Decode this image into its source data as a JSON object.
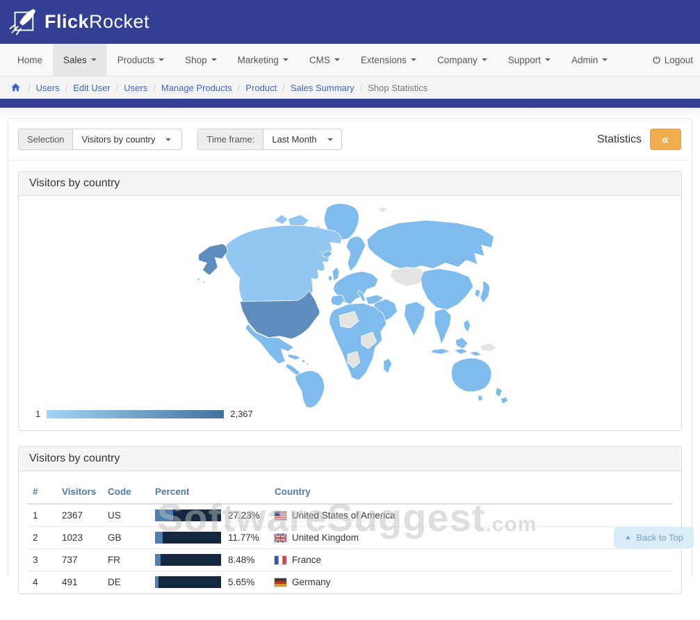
{
  "theme": {
    "header_bg": "#333f92",
    "accent_orange": "#f0ad4e",
    "link_color": "#4363c6",
    "map_default": "#7fbbec",
    "map_low": "#92c7f1",
    "map_high": "#5e8cbd",
    "map_empty": "#e3e3e3",
    "bar_bg": "#14293f",
    "bar_fill": "#4d80b0",
    "table_header_color": "#4d7ca8",
    "legend_from": "#a3d4f7",
    "legend_to": "#44719e"
  },
  "header": {
    "brand_bold": "Flick",
    "brand_regular": "Rocket"
  },
  "nav": {
    "items": [
      {
        "label": "Home",
        "has_dropdown": false,
        "active": false
      },
      {
        "label": "Sales",
        "has_dropdown": true,
        "active": true
      },
      {
        "label": "Products",
        "has_dropdown": true,
        "active": false
      },
      {
        "label": "Shop",
        "has_dropdown": true,
        "active": false
      },
      {
        "label": "Marketing",
        "has_dropdown": true,
        "active": false
      },
      {
        "label": "CMS",
        "has_dropdown": true,
        "active": false
      },
      {
        "label": "Extensions",
        "has_dropdown": true,
        "active": false
      },
      {
        "label": "Company",
        "has_dropdown": true,
        "active": false
      },
      {
        "label": "Support",
        "has_dropdown": true,
        "active": false
      },
      {
        "label": "Admin",
        "has_dropdown": true,
        "active": false
      }
    ],
    "logout_label": "Logout"
  },
  "breadcrumb": {
    "links": [
      "Users",
      "Edit User",
      "Users",
      "Manage Products",
      "Product",
      "Sales Summary"
    ],
    "current": "Shop Statistics"
  },
  "toolbar": {
    "selection_label": "Selection",
    "selection_value": "Visitors by country",
    "timeframe_label": "Time frame:",
    "timeframe_value": "Last Month",
    "statistics_label": "Statistics",
    "collapse_icon": "«"
  },
  "map_panel": {
    "title": "Visitors by country",
    "legend_min": "1",
    "legend_max": "2,367"
  },
  "table_panel": {
    "title": "Visitors by country",
    "columns": [
      "#",
      "Visitors",
      "Code",
      "Percent",
      "Country"
    ],
    "rows": [
      {
        "rank": "1",
        "visitors": "2367",
        "code": "US",
        "percent": "27.23%",
        "percent_value": 27.23,
        "country": "United States of America",
        "flag": "us"
      },
      {
        "rank": "2",
        "visitors": "1023",
        "code": "GB",
        "percent": "11.77%",
        "percent_value": 11.77,
        "country": "United Kingdom",
        "flag": "gb"
      },
      {
        "rank": "3",
        "visitors": "737",
        "code": "FR",
        "percent": "8.48%",
        "percent_value": 8.48,
        "country": "France",
        "flag": "fr"
      },
      {
        "rank": "4",
        "visitors": "491",
        "code": "DE",
        "percent": "5.65%",
        "percent_value": 5.65,
        "country": "Germany",
        "flag": "de"
      }
    ]
  },
  "watermark": {
    "text": "SoftwareSuggest",
    "suffix": ".com"
  },
  "back_to_top": {
    "icon": "▲",
    "label": "Back to Top"
  }
}
